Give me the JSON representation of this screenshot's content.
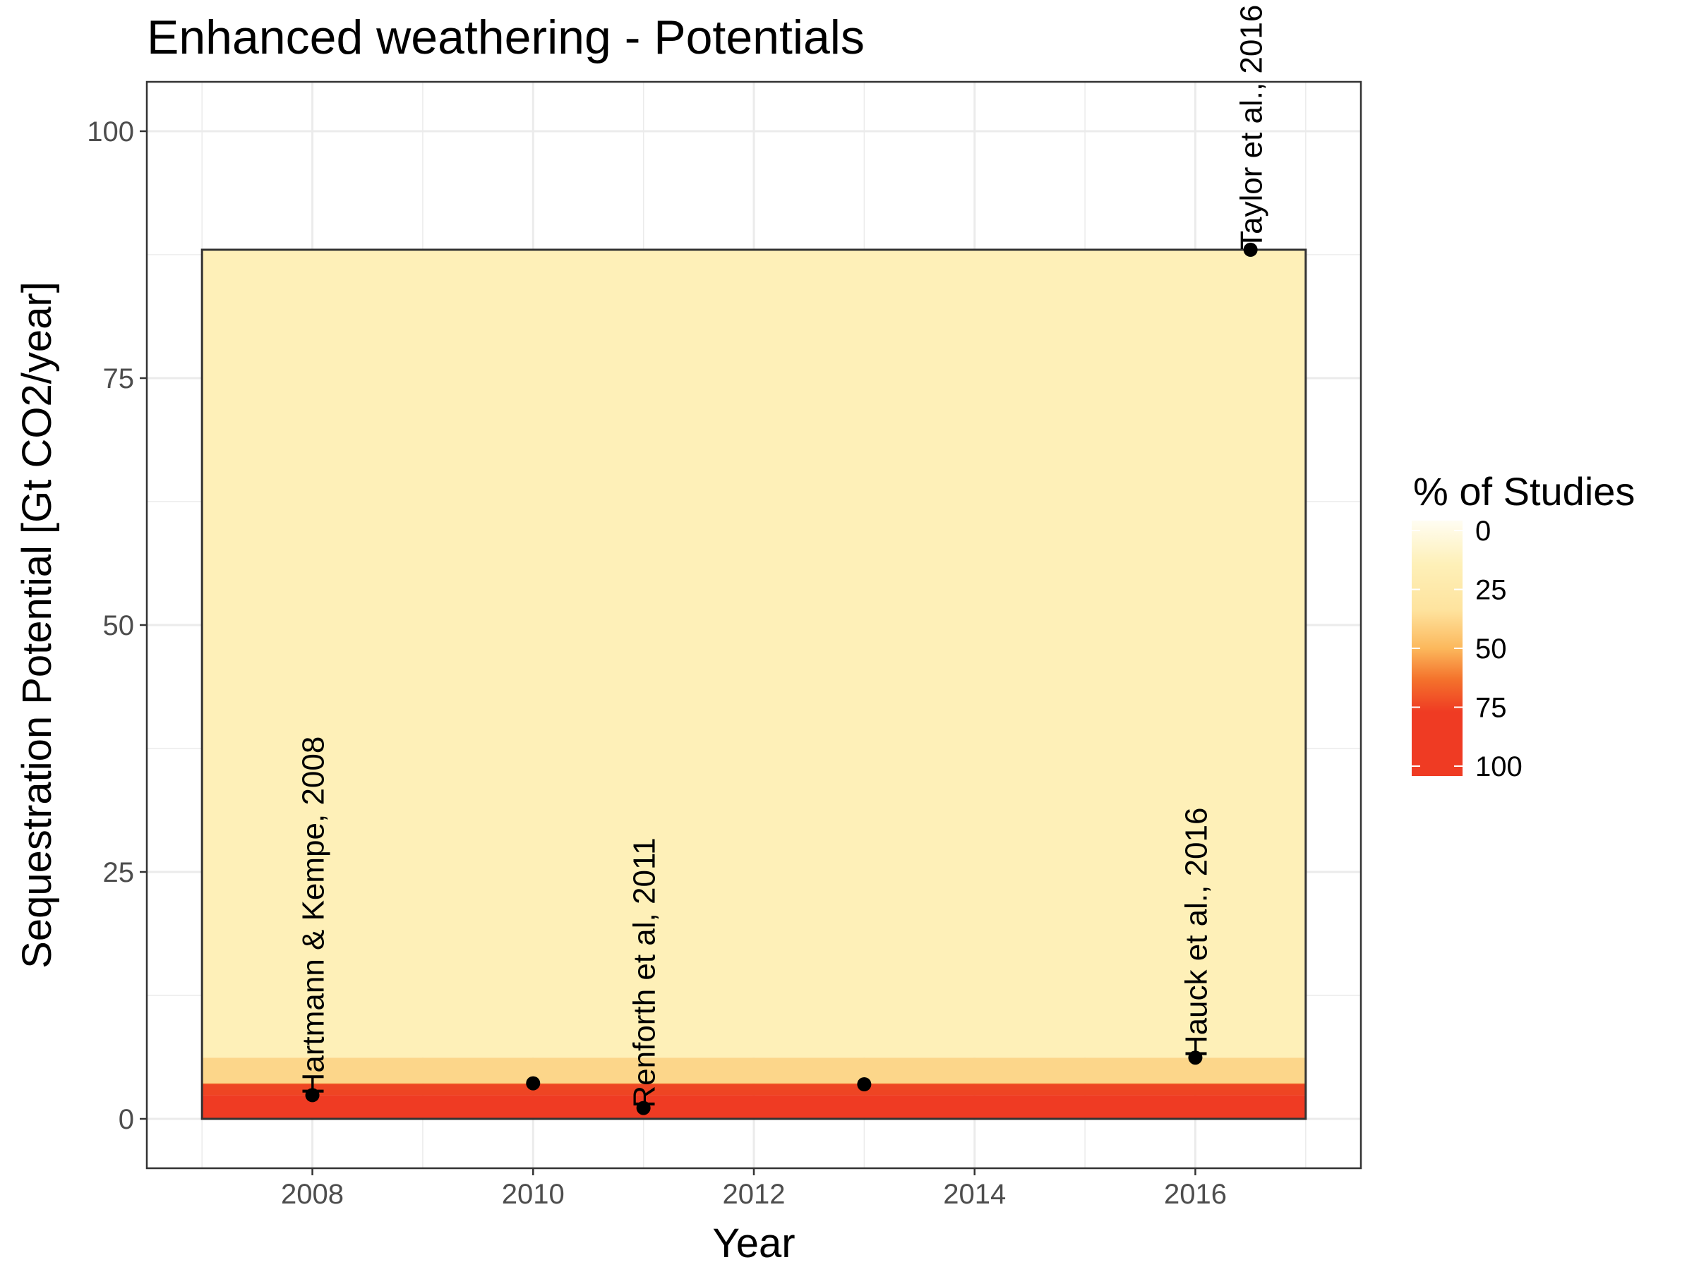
{
  "chart_data": {
    "type": "scatter",
    "title": "Enhanced weathering - Potentials",
    "xlabel": "Year",
    "ylabel": "Sequestration Potential [Gt CO2/year]",
    "xlim": [
      2006.5,
      2017.5
    ],
    "ylim": [
      -5,
      105
    ],
    "xticks": [
      2008,
      2010,
      2012,
      2014,
      2016
    ],
    "yticks": [
      0,
      25,
      50,
      75,
      100
    ],
    "xtick_labels": [
      "2008",
      "2010",
      "2012",
      "2014",
      "2016"
    ],
    "ytick_labels": [
      "0",
      "25",
      "50",
      "75",
      "100"
    ],
    "grid": true,
    "points": [
      {
        "x": 2008,
        "y": 2.4,
        "label": "Hartmann & Kempe, 2008"
      },
      {
        "x": 2010,
        "y": 3.6,
        "label": ""
      },
      {
        "x": 2011,
        "y": 1.1,
        "label": "Renforth et al, 2011"
      },
      {
        "x": 2013,
        "y": 3.5,
        "label": ""
      },
      {
        "x": 2016,
        "y": 6.2,
        "label": "Hauck et al., 2016"
      },
      {
        "x": 2016.5,
        "y": 88,
        "label": "Taylor et al., 2016"
      }
    ],
    "shading": {
      "x_range": [
        2007,
        2017
      ],
      "bands": [
        {
          "from": 0,
          "to": 2.4,
          "pct": 100,
          "color": "#ef3b23"
        },
        {
          "from": 2.4,
          "to": 3.5,
          "pct": 83,
          "color": "#ee4523"
        },
        {
          "from": 3.5,
          "to": 3.6,
          "pct": 67,
          "color": "#f4732c"
        },
        {
          "from": 3.6,
          "to": 6.2,
          "pct": 50,
          "color": "#fcd68a"
        },
        {
          "from": 6.2,
          "to": 88,
          "pct": 17,
          "color": "#fef0b8"
        }
      ]
    },
    "legend": {
      "title": "% of Studies",
      "position": "right",
      "ticks": [
        "0",
        "25",
        "50",
        "75",
        "100"
      ],
      "scale": [
        {
          "pct": 0,
          "color": "#fffdf2"
        },
        {
          "pct": 17,
          "color": "#fef0b8"
        },
        {
          "pct": 35,
          "color": "#fee39e"
        },
        {
          "pct": 50,
          "color": "#fcb85c"
        },
        {
          "pct": 62,
          "color": "#f4732c"
        },
        {
          "pct": 75,
          "color": "#ef3b23"
        },
        {
          "pct": 100,
          "color": "#ef3b23"
        }
      ]
    }
  }
}
